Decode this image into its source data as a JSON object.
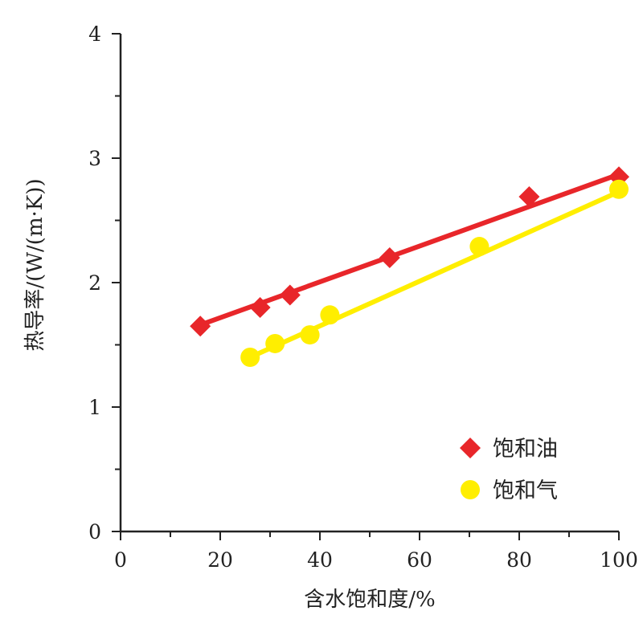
{
  "chart_data": {
    "type": "scatter",
    "title": "",
    "xlabel": "含水饱和度/%",
    "ylabel": "热导率/(W/(m·K))",
    "xlim": [
      0,
      100
    ],
    "ylim": [
      0,
      4
    ],
    "x_ticks": [
      0,
      20,
      40,
      60,
      80,
      100
    ],
    "y_ticks": [
      0,
      1,
      2,
      3,
      4
    ],
    "grid": false,
    "legend_position": "bottom-right",
    "series": [
      {
        "name": "饱和油",
        "marker": "diamond",
        "color": "#e8262a",
        "points": [
          {
            "x": 16,
            "y": 1.65
          },
          {
            "x": 28,
            "y": 1.8
          },
          {
            "x": 34,
            "y": 1.9
          },
          {
            "x": 54,
            "y": 2.2
          },
          {
            "x": 82,
            "y": 2.69
          },
          {
            "x": 100,
            "y": 2.85
          }
        ],
        "fit_line": {
          "x": [
            16,
            100
          ],
          "y": [
            1.66,
            2.87
          ]
        }
      },
      {
        "name": "饱和气",
        "marker": "circle",
        "color": "#ffee00",
        "points": [
          {
            "x": 26,
            "y": 1.4
          },
          {
            "x": 31,
            "y": 1.51
          },
          {
            "x": 38,
            "y": 1.58
          },
          {
            "x": 42,
            "y": 1.74
          },
          {
            "x": 72,
            "y": 2.29
          },
          {
            "x": 100,
            "y": 2.75
          }
        ],
        "fit_line": {
          "x": [
            26,
            100
          ],
          "y": [
            1.4,
            2.73
          ]
        }
      }
    ]
  }
}
